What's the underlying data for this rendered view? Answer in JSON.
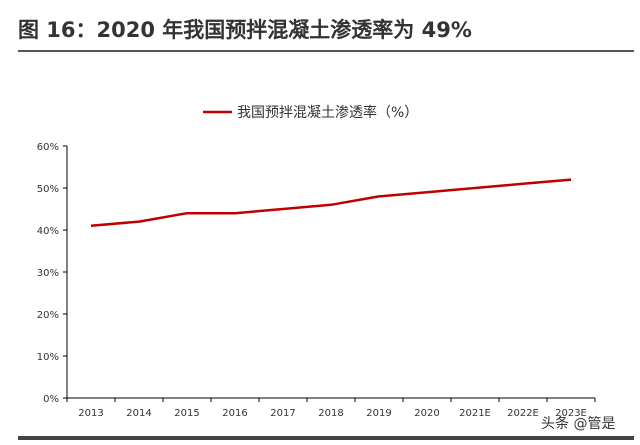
{
  "title": "图 16：2020 年我国预拌混凝土渗透率为 49%",
  "watermark": "头条 @管是",
  "colors": {
    "line": "#c00000"
  },
  "chart_data": {
    "type": "line",
    "title": "图 16：2020 年我国预拌混凝土渗透率为 49%",
    "categories": [
      "2013",
      "2014",
      "2015",
      "2016",
      "2017",
      "2018",
      "2019",
      "2020",
      "2021E",
      "2022E",
      "2023E"
    ],
    "series": [
      {
        "name": "我国预拌混凝土渗透率（%）",
        "values": [
          41,
          42,
          44,
          44,
          45,
          46,
          48,
          49,
          50,
          51,
          52
        ]
      }
    ],
    "yticks": [
      "0%",
      "10%",
      "20%",
      "30%",
      "40%",
      "50%",
      "60%"
    ],
    "ylim": [
      0,
      60
    ],
    "legend": "top-center",
    "grid": false
  }
}
